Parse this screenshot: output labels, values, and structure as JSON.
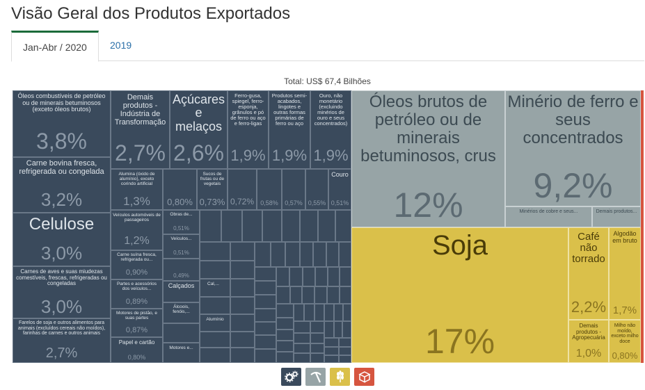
{
  "page_title": "Visão Geral dos Produtos Exportados",
  "tabs": [
    {
      "label": "Jan-Abr / 2020",
      "active": true
    },
    {
      "label": "2019",
      "active": false
    }
  ],
  "total_label": "Total: US$ 67,4 Bilhões",
  "colors": {
    "industria": "#3a4a5c",
    "extrativa": "#97a4a6",
    "agropecuaria": "#dac04a",
    "outros": "#d6553f",
    "tab_accent": "#1b6b3a",
    "link": "#2a6fa8"
  },
  "legend": [
    {
      "icon": "gears-icon",
      "color": "#3a4a5c"
    },
    {
      "icon": "pickaxe-icon",
      "color": "#97a4a6"
    },
    {
      "icon": "wheat-icon",
      "color": "#dac04a"
    },
    {
      "icon": "box-icon",
      "color": "#d6553f"
    }
  ],
  "treemap": {
    "cells": [
      {
        "label": "Óleos combustíveis de petróleo ou de minerais betuminosos (exceto óleos brutos)",
        "pct": "3,8%"
      },
      {
        "label": "Carne bovina fresca, refrigerada ou congelada",
        "pct": "3,2%"
      },
      {
        "label": "Celulose",
        "pct": "3,0%"
      },
      {
        "label": "Carnes de aves e suas miudezas comestíveis, frescas, refrigeradas ou congeladas",
        "pct": "3,0%"
      },
      {
        "label": "Farelos de soja e outros alimentos para animais (excluídos cereais não moídos), farinhas de carnes e outros animais",
        "pct": "2,7%"
      },
      {
        "label": "Demais produtos - Indústria de Transformação",
        "pct": "2,7%"
      },
      {
        "label": "Açúcares e melaços",
        "pct": "2,6%"
      },
      {
        "label": "Ferro-gusa, spiegel, ferro-esponja, grânulos e pó de ferro ou aço e ferro-ligas",
        "pct": "1,9%"
      },
      {
        "label": "Produtos semi-acabados, lingotes e outras formas primárias de ferro ou aço",
        "pct": "1,9%"
      },
      {
        "label": "Ouro, não monetário (excluindo minérios de ouro e seus concentrados)",
        "pct": "1,9%"
      },
      {
        "label": "Alumina (óxido de alumínio), exceto corindo artificial",
        "pct": "1,3%"
      },
      {
        "label": "Sucos de frutas ou de vegetais",
        "pct": "0,73%"
      },
      {
        "label": "Couro",
        "pct": "0,51%"
      },
      {
        "label": "Veículos automóveis de passageiros",
        "pct": "1,2%"
      },
      {
        "label": "Obras de...",
        "pct": "0,51%"
      },
      {
        "label": "Veículos...",
        "pct": "0,51%"
      },
      {
        "label": "Carne suína fresca, refrigerada ou...",
        "pct": "0,90%"
      },
      {
        "label": "Partes e acessórios dos veículos...",
        "pct": "0,89%"
      },
      {
        "label": "Calçados",
        "pct": ""
      },
      {
        "label": "Cal,...",
        "pct": ""
      },
      {
        "label": "Álcoois, fenóis,...",
        "pct": ""
      },
      {
        "label": "Alumínio",
        "pct": ""
      },
      {
        "label": "Motores de pistão, e suas partes",
        "pct": "0,87%"
      },
      {
        "label": "Papel e cartão",
        "pct": "0,80%"
      },
      {
        "label": "Motores e...",
        "pct": ""
      },
      {
        "label": "Óleos brutos de petróleo ou de minerais betuminosos, crus",
        "pct": "12%"
      },
      {
        "label": "Minério de ferro e seus concentrados",
        "pct": "9,2%"
      },
      {
        "label": "Minérios de cobre e seus...",
        "pct": ""
      },
      {
        "label": "Demais produtos...",
        "pct": ""
      },
      {
        "label": "Soja",
        "pct": "17%"
      },
      {
        "label": "Café não torrado",
        "pct": "2,2%"
      },
      {
        "label": "Algodão em bruto",
        "pct": "1,7%"
      },
      {
        "label": "Demais produtos - Agropecuária",
        "pct": "1,0%"
      },
      {
        "label": "Milho não moído, exceto milho doce",
        "pct": "0,80%"
      }
    ],
    "unlabeled_pcts": [
      "0,80%",
      "0,72%",
      "0,58%",
      "0,57%",
      "0,55%",
      "0,49%"
    ]
  }
}
